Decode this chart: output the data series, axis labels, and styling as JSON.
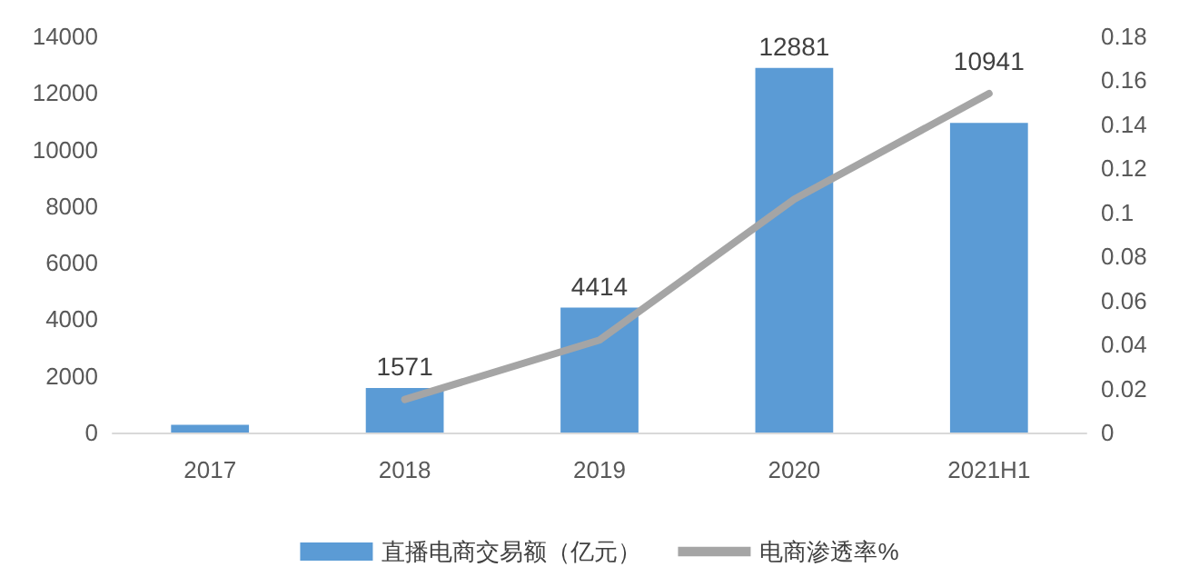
{
  "chart_data": {
    "type": "bar",
    "categories": [
      "2017",
      "2018",
      "2019",
      "2020",
      "2021H1"
    ],
    "series": [
      {
        "name": "直播电商交易额（亿元）",
        "color": "#5b9bd5",
        "values": [
          270,
          1571,
          4414,
          12881,
          10941
        ],
        "value_labels": [
          null,
          "1571",
          "4414",
          "12881",
          "10941"
        ]
      },
      {
        "name": "电商渗透率%",
        "type": "line",
        "axis": "y2",
        "color": "#a5a5a5",
        "values": [
          null,
          0.015,
          0.042,
          0.106,
          0.154
        ]
      }
    ],
    "ylim": [
      0,
      14000
    ],
    "yticks": [
      0,
      2000,
      4000,
      6000,
      8000,
      10000,
      12000,
      14000
    ],
    "y2lim": [
      0,
      0.18
    ],
    "y2ticks": [
      0,
      0.02,
      0.04,
      0.06,
      0.08,
      0.1,
      0.12,
      0.14,
      0.16,
      0.18
    ],
    "grid": false,
    "legend": "bottom",
    "marker": "none",
    "line_style": "solid"
  }
}
